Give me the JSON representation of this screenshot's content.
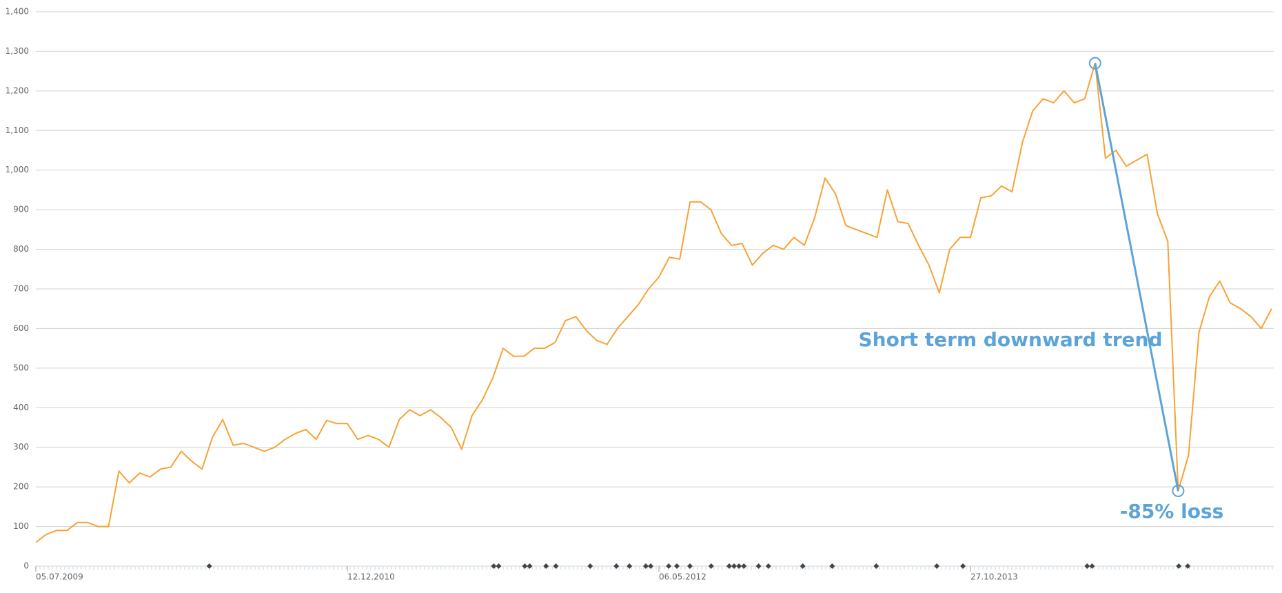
{
  "chart_data": {
    "type": "line",
    "categories": [
      "05.07.2009",
      null,
      null,
      null,
      null,
      null,
      null,
      null,
      null,
      null,
      null,
      null,
      null,
      null,
      null,
      null,
      null,
      null,
      null,
      null,
      null,
      null,
      null,
      null,
      null,
      null,
      null,
      null,
      null,
      null,
      "12.12.2010",
      null,
      null,
      null,
      null,
      null,
      null,
      null,
      null,
      null,
      null,
      null,
      null,
      null,
      null,
      null,
      null,
      null,
      null,
      null,
      null,
      null,
      null,
      null,
      null,
      null,
      null,
      null,
      null,
      null,
      "06.05.2012",
      null,
      null,
      null,
      null,
      null,
      null,
      null,
      null,
      null,
      null,
      null,
      null,
      null,
      null,
      null,
      null,
      null,
      null,
      null,
      null,
      null,
      null,
      null,
      null,
      null,
      null,
      null,
      null,
      null,
      "27.10.2013",
      null,
      null,
      null,
      null,
      null,
      null,
      null,
      null,
      null,
      null,
      null,
      null,
      null,
      null,
      null,
      null,
      null,
      null,
      null,
      null,
      null,
      null,
      null,
      null,
      null,
      null,
      null,
      null,
      null
    ],
    "series": [
      {
        "color": "#f7a234",
        "values": [
          60,
          80,
          90,
          90,
          110,
          110,
          100,
          100,
          240,
          210,
          235,
          225,
          245,
          250,
          290,
          265,
          245,
          325,
          370,
          305,
          310,
          300,
          290,
          300,
          320,
          335,
          345,
          320,
          368,
          360,
          360,
          320,
          330,
          320,
          300,
          370,
          395,
          380,
          395,
          375,
          350,
          295,
          380,
          420,
          475,
          550,
          530,
          530,
          550,
          550,
          565,
          620,
          630,
          595,
          570,
          560,
          600,
          630,
          660,
          700,
          730,
          780,
          775,
          920,
          920,
          900,
          840,
          810,
          815,
          760,
          790,
          810,
          800,
          830,
          810,
          880,
          980,
          940,
          860,
          850,
          840,
          830,
          950,
          870,
          865,
          810,
          760,
          690,
          800,
          830,
          830,
          930,
          935,
          960,
          945,
          1070,
          1150,
          1180,
          1170,
          1200,
          1170,
          1180,
          1270,
          1030,
          1050,
          1010,
          1025,
          1040,
          890,
          820,
          190,
          280,
          590,
          680,
          720,
          665,
          650,
          630,
          600,
          650
        ]
      }
    ],
    "ylim": [
      0,
      1400
    ],
    "yticks": [
      0,
      100,
      200,
      300,
      400,
      500,
      600,
      700,
      800,
      900,
      {
        "value": 1000,
        "label": "1,000"
      },
      {
        "value": 1100,
        "label": "1,100"
      },
      {
        "value": 1200,
        "label": "1,200"
      },
      {
        "value": 1300,
        "label": "1,300"
      },
      {
        "value": 1400,
        "label": "1,400"
      }
    ],
    "grid": true,
    "annotations": [
      "Short term downward trend",
      "-85% loss"
    ],
    "annotation_color": "#5ba3d9"
  }
}
